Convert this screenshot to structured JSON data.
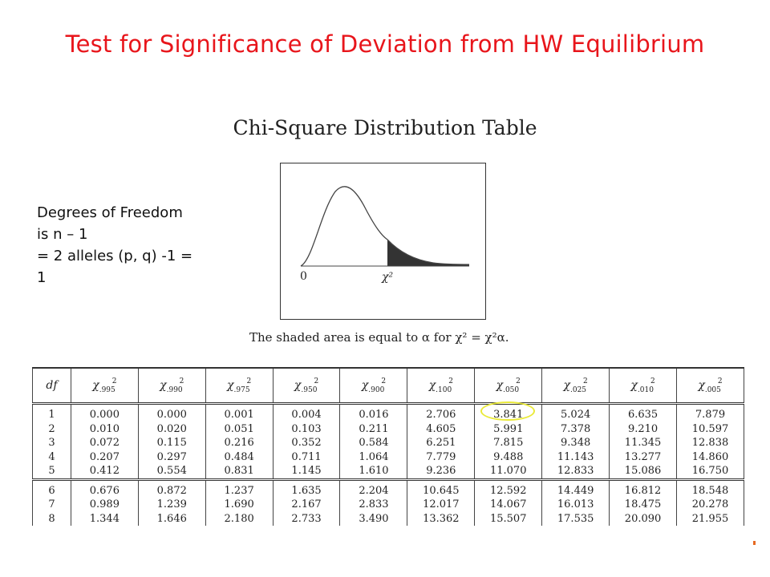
{
  "slide": {
    "title": "Test for Significance of Deviation from HW Equilibrium",
    "note_lines": [
      "Degrees of Freedom",
      "is n – 1",
      "= 2 alleles (p, q) -1 =",
      "1"
    ]
  },
  "figure": {
    "title": "Chi-Square Distribution Table",
    "curve_label_zero": "0",
    "curve_label_chi": "χ²",
    "caption": "The shaded area is equal to α for χ² = χ²α."
  },
  "table": {
    "header_df": "df",
    "alpha_levels": [
      ".995",
      ".990",
      ".975",
      ".950",
      ".900",
      ".100",
      ".050",
      ".025",
      ".010",
      ".005"
    ],
    "rows": [
      {
        "df": "1",
        "values": [
          "0.000",
          "0.000",
          "0.001",
          "0.004",
          "0.016",
          "2.706",
          "3.841",
          "5.024",
          "6.635",
          "7.879"
        ]
      },
      {
        "df": "2",
        "values": [
          "0.010",
          "0.020",
          "0.051",
          "0.103",
          "0.211",
          "4.605",
          "5.991",
          "7.378",
          "9.210",
          "10.597"
        ]
      },
      {
        "df": "3",
        "values": [
          "0.072",
          "0.115",
          "0.216",
          "0.352",
          "0.584",
          "6.251",
          "7.815",
          "9.348",
          "11.345",
          "12.838"
        ]
      },
      {
        "df": "4",
        "values": [
          "0.207",
          "0.297",
          "0.484",
          "0.711",
          "1.064",
          "7.779",
          "9.488",
          "11.143",
          "13.277",
          "14.860"
        ]
      },
      {
        "df": "5",
        "values": [
          "0.412",
          "0.554",
          "0.831",
          "1.145",
          "1.610",
          "9.236",
          "11.070",
          "12.833",
          "15.086",
          "16.750"
        ]
      },
      {
        "df": "6",
        "values": [
          "0.676",
          "0.872",
          "1.237",
          "1.635",
          "2.204",
          "10.645",
          "12.592",
          "14.449",
          "16.812",
          "18.548"
        ]
      },
      {
        "df": "7",
        "values": [
          "0.989",
          "1.239",
          "1.690",
          "2.167",
          "2.833",
          "12.017",
          "14.067",
          "16.013",
          "18.475",
          "20.278"
        ]
      },
      {
        "df": "8",
        "values": [
          "1.344",
          "1.646",
          "2.180",
          "2.733",
          "3.490",
          "13.362",
          "15.507",
          "17.535",
          "20.090",
          "21.955"
        ]
      }
    ],
    "highlighted_value": "3.841"
  },
  "colors": {
    "title": "#e8151b",
    "highlight_ring": "#eaea3a",
    "shaded_tail": "#333333"
  }
}
